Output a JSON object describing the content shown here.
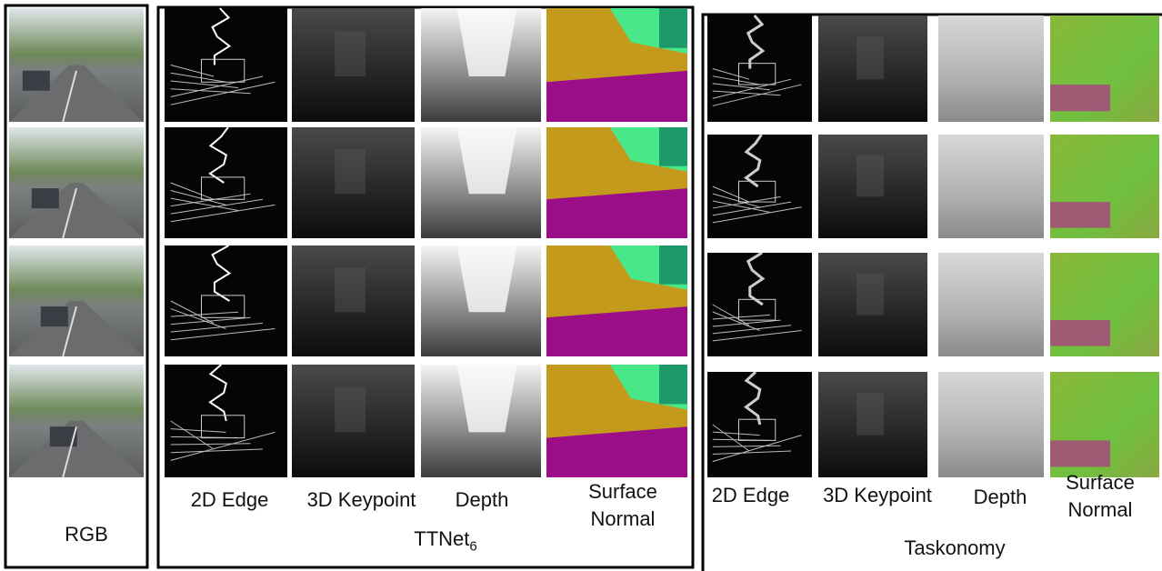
{
  "panels": [
    {
      "label": "RGB"
    },
    {
      "label": "TTNet",
      "label_subscript": "6",
      "columns": [
        "2D Edge",
        "3D Keypoint",
        "Depth",
        "Surface Normal"
      ]
    },
    {
      "label": "Taskonomy",
      "columns": [
        "2D Edge",
        "3D Keypoint",
        "Depth",
        "Surface Normal"
      ]
    }
  ]
}
